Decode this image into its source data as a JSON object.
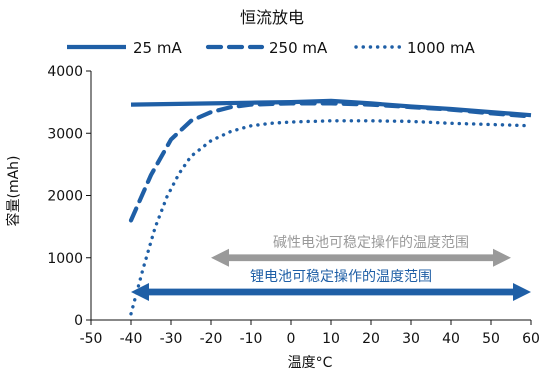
{
  "chart_data": {
    "type": "line",
    "title": "恒流放电",
    "xlabel": "温度°C",
    "ylabel": "容量(mAh)",
    "xlim": [
      -50,
      60
    ],
    "ylim": [
      0,
      4000
    ],
    "xticks": [
      -50,
      -40,
      -30,
      -20,
      -10,
      0,
      10,
      20,
      30,
      40,
      50,
      60
    ],
    "xtick_labels": [
      "-50",
      "-40",
      "-30",
      "-20",
      "-10",
      "0",
      "10",
      "20",
      "30",
      "40",
      "50",
      "60"
    ],
    "yticks": [
      0,
      1000,
      2000,
      3000,
      4000
    ],
    "ytick_labels": [
      "0",
      "1000",
      "2000",
      "3000",
      "4000"
    ],
    "grid": false,
    "legend_position": "top",
    "series": [
      {
        "name": "25 mA",
        "style": "solid",
        "color": "#1f5fa6",
        "points": [
          [
            -40,
            3460
          ],
          [
            -30,
            3470
          ],
          [
            -20,
            3480
          ],
          [
            -10,
            3490
          ],
          [
            0,
            3500
          ],
          [
            10,
            3520
          ],
          [
            20,
            3480
          ],
          [
            30,
            3430
          ],
          [
            40,
            3390
          ],
          [
            50,
            3340
          ],
          [
            60,
            3290
          ]
        ]
      },
      {
        "name": "250 mA",
        "style": "dashed",
        "color": "#1f5fa6",
        "points": [
          [
            -40,
            1600
          ],
          [
            -35,
            2330
          ],
          [
            -30,
            2900
          ],
          [
            -25,
            3200
          ],
          [
            -20,
            3340
          ],
          [
            -15,
            3420
          ],
          [
            -10,
            3460
          ],
          [
            0,
            3480
          ],
          [
            10,
            3480
          ],
          [
            20,
            3460
          ],
          [
            30,
            3420
          ],
          [
            40,
            3380
          ],
          [
            50,
            3320
          ],
          [
            60,
            3270
          ]
        ]
      },
      {
        "name": "1000 mA",
        "style": "dotted",
        "color": "#1f5fa6",
        "points": [
          [
            -40,
            100
          ],
          [
            -37,
            820
          ],
          [
            -34,
            1480
          ],
          [
            -31,
            1980
          ],
          [
            -28,
            2350
          ],
          [
            -25,
            2630
          ],
          [
            -20,
            2880
          ],
          [
            -15,
            3030
          ],
          [
            -10,
            3120
          ],
          [
            -5,
            3160
          ],
          [
            0,
            3180
          ],
          [
            10,
            3200
          ],
          [
            20,
            3200
          ],
          [
            30,
            3190
          ],
          [
            40,
            3160
          ],
          [
            50,
            3140
          ],
          [
            60,
            3120
          ]
        ]
      }
    ],
    "annotations": [
      {
        "text": "碱性电池可稳定操作的温度范围",
        "range": [
          -20,
          55
        ],
        "y": 1000,
        "color": "#9a9a9a"
      },
      {
        "text": "锂电池可稳定操作的温度范围",
        "range": [
          -40,
          60
        ],
        "y": 450,
        "color": "#1f5fa6"
      }
    ]
  }
}
